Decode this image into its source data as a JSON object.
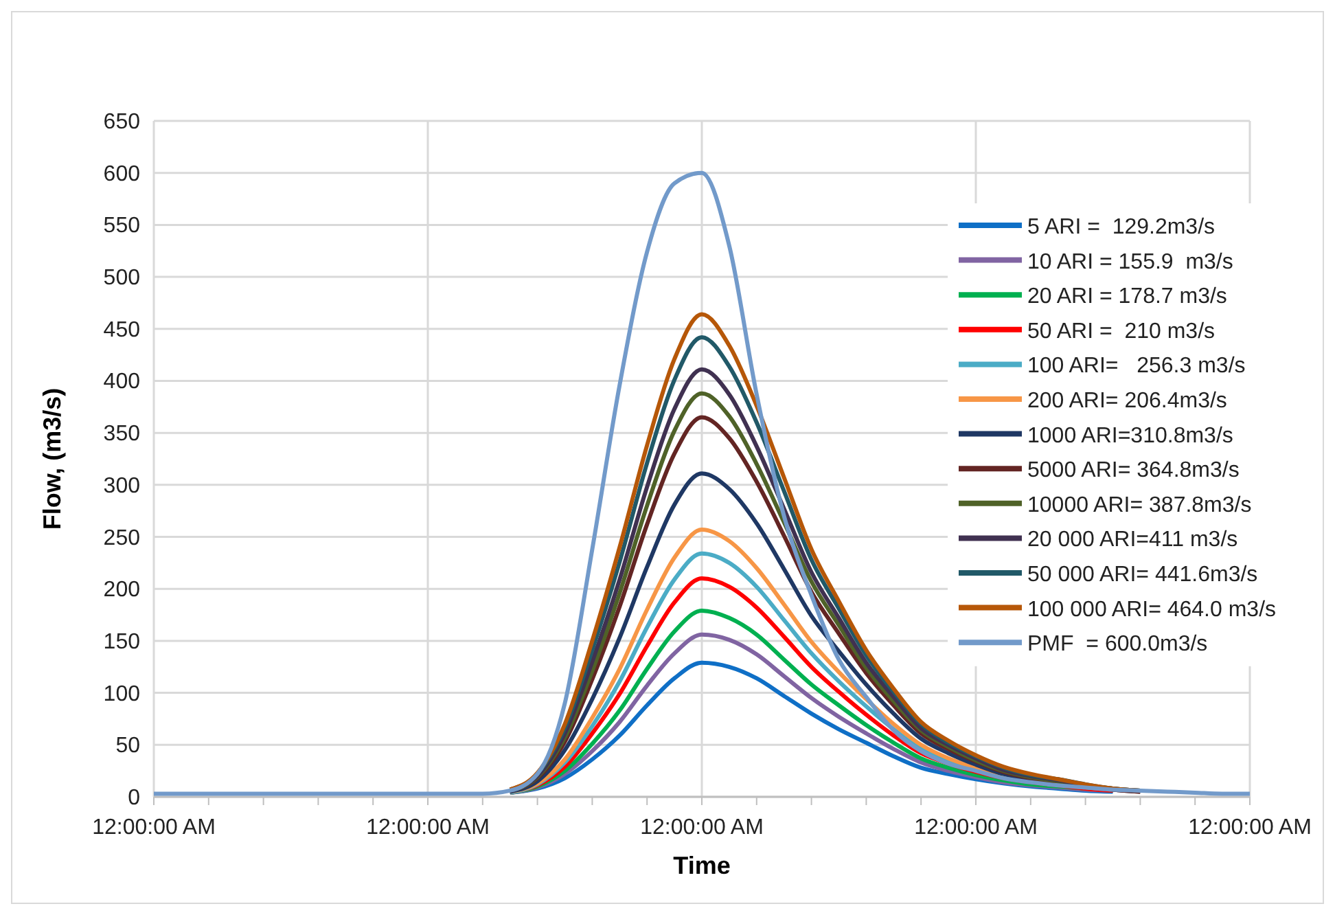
{
  "chart_data": {
    "type": "line",
    "xlabel": "Time",
    "ylabel": "Flow, (m3/s)",
    "categories": [
      "12:00:00 AM",
      null,
      null,
      null,
      null,
      null,
      null,
      null,
      null,
      null,
      "12:00:00 AM",
      null,
      null,
      null,
      null,
      null,
      null,
      null,
      null,
      null,
      "12:00:00 AM",
      null,
      null,
      null,
      null,
      null,
      null,
      null,
      null,
      null,
      "12:00:00 AM",
      null,
      null,
      null,
      null,
      null,
      null,
      null,
      null,
      null,
      "12:00:00 AM"
    ],
    "ylim": [
      0,
      650
    ],
    "yticks": [
      0,
      50,
      100,
      150,
      200,
      250,
      300,
      350,
      400,
      450,
      500,
      550,
      600,
      650
    ],
    "grid": true,
    "legend": "right",
    "line_style": "solid",
    "marker": "none",
    "series": [
      {
        "name": "5 ARI =  129.2m3/s",
        "color": "#0f6fc6",
        "values": [
          null,
          null,
          null,
          null,
          null,
          null,
          null,
          null,
          null,
          null,
          null,
          null,
          null,
          4,
          8,
          18,
          36,
          59,
          88,
          114,
          129,
          125,
          114,
          97,
          80,
          65,
          52,
          39,
          28,
          22,
          17,
          13,
          10,
          8,
          6,
          5,
          null,
          null,
          null,
          null,
          null
        ]
      },
      {
        "name": "10 ARI = 155.9  m3/s",
        "color": "#8064a2",
        "values": [
          null,
          null,
          null,
          null,
          null,
          null,
          null,
          null,
          null,
          null,
          null,
          null,
          null,
          4,
          9,
          22,
          44,
          72,
          107,
          138,
          156,
          151,
          137,
          116,
          95,
          77,
          61,
          46,
          33,
          25,
          19,
          14,
          11,
          9,
          7,
          6,
          null,
          null,
          null,
          null,
          null
        ]
      },
      {
        "name": "20 ARI = 178.7 m3/s",
        "color": "#00b050",
        "values": [
          null,
          null,
          null,
          null,
          null,
          null,
          null,
          null,
          null,
          null,
          null,
          null,
          null,
          4,
          10,
          25,
          51,
          83,
          123,
          159,
          179,
          172,
          156,
          132,
          108,
          88,
          69,
          52,
          37,
          28,
          21,
          16,
          12,
          10,
          8,
          6,
          null,
          null,
          null,
          null,
          null
        ]
      },
      {
        "name": "50 ARI =  210 m3/s",
        "color": "#ff0000",
        "values": [
          null,
          null,
          null,
          null,
          null,
          null,
          null,
          null,
          null,
          null,
          null,
          null,
          null,
          4,
          11,
          29,
          61,
          99,
          145,
          187,
          210,
          202,
          182,
          154,
          125,
          101,
          79,
          59,
          42,
          32,
          24,
          18,
          14,
          11,
          8,
          6,
          null,
          null,
          null,
          null,
          null
        ]
      },
      {
        "name": "100 ARI=   256.3 m3/s",
        "color": "#4bacc6",
        "values": [
          null,
          null,
          null,
          null,
          null,
          null,
          null,
          null,
          null,
          null,
          null,
          null,
          null,
          4,
          12,
          33,
          68,
          111,
          163,
          209,
          234,
          225,
          202,
          170,
          138,
          111,
          87,
          65,
          46,
          35,
          26,
          19,
          15,
          12,
          9,
          7,
          null,
          null,
          null,
          null,
          null
        ]
      },
      {
        "name": "200 ARI= 206.4m3/s",
        "color": "#f79646",
        "values": [
          null,
          null,
          null,
          null,
          null,
          null,
          null,
          null,
          null,
          null,
          null,
          null,
          null,
          5,
          13,
          36,
          76,
          123,
          180,
          230,
          257,
          246,
          220,
          185,
          149,
          120,
          94,
          70,
          50,
          37,
          28,
          20,
          15,
          null,
          null,
          null,
          null,
          null,
          null,
          null,
          null
        ]
      },
      {
        "name": "1000 ARI=310.8m3/s",
        "color": "#1f3864",
        "values": [
          null,
          null,
          null,
          null,
          null,
          null,
          null,
          null,
          null,
          null,
          null,
          null,
          null,
          5,
          15,
          45,
          94,
          153,
          221,
          281,
          311,
          296,
          263,
          219,
          174,
          140,
          108,
          80,
          56,
          42,
          31,
          22,
          17,
          13,
          10,
          7,
          5,
          null,
          null,
          null,
          null
        ]
      },
      {
        "name": "5000 ARI= 364.8m3/s",
        "color": "#632523",
        "values": [
          null,
          null,
          null,
          null,
          null,
          null,
          null,
          null,
          null,
          null,
          null,
          null,
          null,
          6,
          18,
          53,
          113,
          183,
          262,
          330,
          365,
          345,
          303,
          251,
          197,
          157,
          119,
          88,
          61,
          46,
          34,
          24,
          18,
          14,
          10,
          7,
          5,
          null,
          null,
          null,
          null
        ]
      },
      {
        "name": "10000 ARI= 387.8m3/s",
        "color": "#4f6228",
        "values": [
          null,
          null,
          null,
          null,
          null,
          null,
          null,
          null,
          null,
          null,
          null,
          null,
          null,
          6,
          19,
          57,
          121,
          196,
          280,
          352,
          388,
          366,
          320,
          264,
          207,
          165,
          124,
          92,
          64,
          48,
          35,
          25,
          19,
          15,
          11,
          8,
          6,
          null,
          null,
          null,
          null
        ]
      },
      {
        "name": "20 000 ARI=411 m3/s",
        "color": "#403151",
        "values": [
          null,
          null,
          null,
          null,
          null,
          null,
          null,
          null,
          null,
          null,
          null,
          null,
          null,
          6,
          20,
          61,
          130,
          209,
          298,
          373,
          411,
          387,
          337,
          277,
          216,
          172,
          129,
          96,
          66,
          50,
          37,
          26,
          20,
          16,
          11,
          8,
          6,
          null,
          null,
          null,
          null
        ]
      },
      {
        "name": "50 000 ARI= 441.6m3/s",
        "color": "#215968",
        "values": [
          null,
          null,
          null,
          null,
          null,
          null,
          null,
          null,
          null,
          null,
          null,
          null,
          null,
          7,
          22,
          66,
          141,
          226,
          321,
          401,
          442,
          414,
          360,
          294,
          228,
          181,
          136,
          101,
          70,
          52,
          39,
          28,
          21,
          17,
          12,
          8,
          6,
          null,
          null,
          null,
          null
        ]
      },
      {
        "name": "100 000 ARI= 464.0 m3/s",
        "color": "#b65708",
        "values": [
          null,
          null,
          null,
          null,
          null,
          null,
          null,
          null,
          null,
          null,
          null,
          null,
          null,
          7,
          23,
          70,
          150,
          240,
          338,
          421,
          464,
          434,
          376,
          307,
          238,
          188,
          141,
          104,
          72,
          54,
          40,
          29,
          22,
          17,
          12,
          8,
          6,
          null,
          null,
          null,
          null
        ]
      },
      {
        "name": "PMF  = 600.0m3/s",
        "color": "#729aca",
        "values": [
          3,
          3,
          3,
          3,
          3,
          3,
          3,
          3,
          3,
          3,
          3,
          3,
          3,
          6,
          22,
          90,
          238,
          396,
          524,
          590,
          600,
          530,
          387,
          270,
          194,
          132,
          96,
          64,
          44,
          32,
          25,
          18,
          14,
          11,
          9,
          7,
          6,
          5,
          4,
          3,
          3
        ]
      }
    ]
  }
}
